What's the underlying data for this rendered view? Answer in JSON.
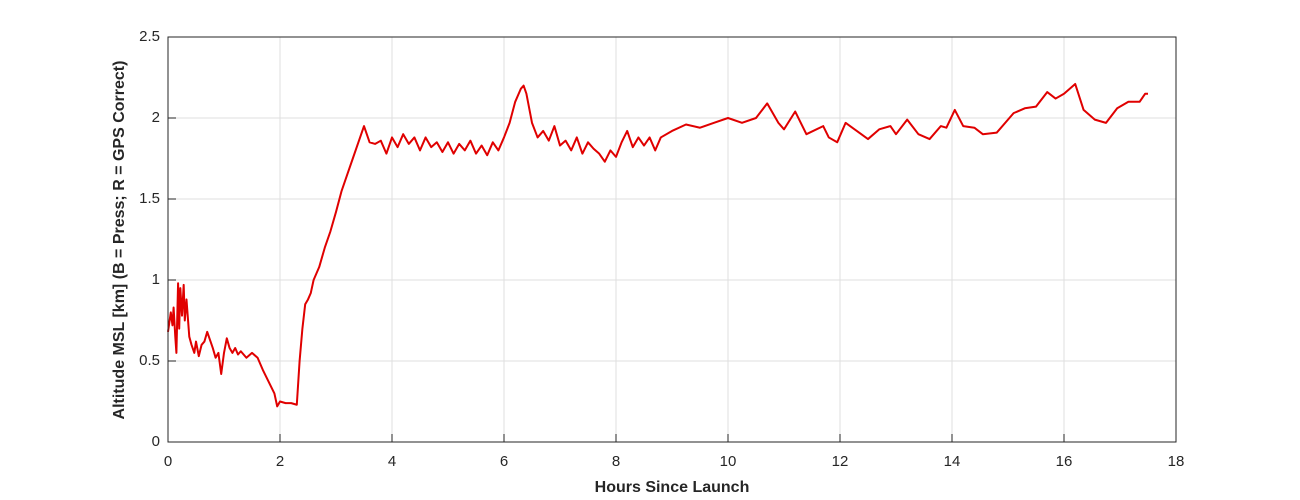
{
  "chart_data": {
    "type": "line",
    "xlabel": "Hours Since Launch",
    "ylabel": "Altitude MSL [km]   (B = Press; R = GPS Correct)",
    "xlim": [
      0,
      18
    ],
    "xticks": [
      0,
      2,
      4,
      6,
      8,
      10,
      12,
      14,
      16,
      18
    ],
    "ylim": [
      0,
      2.5
    ],
    "yticks": [
      0,
      0.5,
      1,
      1.5,
      2,
      2.5
    ],
    "grid": true,
    "series": [
      {
        "color": "#e00000",
        "x": [
          0.0,
          0.05,
          0.08,
          0.1,
          0.13,
          0.15,
          0.18,
          0.2,
          0.22,
          0.25,
          0.28,
          0.3,
          0.33,
          0.38,
          0.42,
          0.47,
          0.5,
          0.55,
          0.6,
          0.65,
          0.7,
          0.75,
          0.8,
          0.85,
          0.9,
          0.95,
          1.0,
          1.05,
          1.1,
          1.15,
          1.2,
          1.25,
          1.3,
          1.4,
          1.5,
          1.6,
          1.7,
          1.8,
          1.9,
          1.95,
          2.0,
          2.1,
          2.2,
          2.3,
          2.35,
          2.4,
          2.45,
          2.5,
          2.55,
          2.6,
          2.7,
          2.8,
          2.9,
          3.0,
          3.1,
          3.2,
          3.3,
          3.4,
          3.5,
          3.6,
          3.7,
          3.8,
          3.9,
          4.0,
          4.1,
          4.2,
          4.3,
          4.4,
          4.5,
          4.6,
          4.7,
          4.8,
          4.9,
          5.0,
          5.1,
          5.2,
          5.3,
          5.4,
          5.5,
          5.6,
          5.7,
          5.8,
          5.9,
          6.0,
          6.1,
          6.2,
          6.3,
          6.35,
          6.4,
          6.5,
          6.6,
          6.7,
          6.8,
          6.9,
          7.0,
          7.1,
          7.2,
          7.3,
          7.4,
          7.5,
          7.6,
          7.7,
          7.8,
          7.9,
          8.0,
          8.1,
          8.2,
          8.3,
          8.4,
          8.5,
          8.6,
          8.7,
          8.8,
          9.0,
          9.25,
          9.5,
          9.75,
          10.0,
          10.25,
          10.5,
          10.7,
          10.9,
          11.0,
          11.2,
          11.4,
          11.7,
          11.8,
          11.95,
          12.1,
          12.3,
          12.5,
          12.7,
          12.9,
          13.0,
          13.2,
          13.4,
          13.6,
          13.8,
          13.9,
          14.05,
          14.2,
          14.4,
          14.55,
          14.8,
          15.1,
          15.3,
          15.5,
          15.7,
          15.85,
          16.0,
          16.2,
          16.35,
          16.55,
          16.75,
          16.95,
          17.15,
          17.35,
          17.45,
          17.5
        ],
        "values": [
          0.68,
          0.8,
          0.72,
          0.83,
          0.65,
          0.55,
          0.98,
          0.7,
          0.95,
          0.78,
          0.97,
          0.75,
          0.88,
          0.65,
          0.6,
          0.55,
          0.62,
          0.53,
          0.6,
          0.62,
          0.68,
          0.63,
          0.58,
          0.52,
          0.55,
          0.42,
          0.55,
          0.64,
          0.58,
          0.55,
          0.58,
          0.54,
          0.56,
          0.52,
          0.55,
          0.52,
          0.44,
          0.37,
          0.3,
          0.22,
          0.25,
          0.24,
          0.24,
          0.23,
          0.5,
          0.7,
          0.85,
          0.88,
          0.92,
          1.0,
          1.08,
          1.2,
          1.3,
          1.42,
          1.55,
          1.65,
          1.75,
          1.85,
          1.95,
          1.85,
          1.84,
          1.86,
          1.78,
          1.88,
          1.82,
          1.9,
          1.84,
          1.88,
          1.8,
          1.88,
          1.82,
          1.85,
          1.79,
          1.85,
          1.78,
          1.84,
          1.8,
          1.86,
          1.78,
          1.83,
          1.77,
          1.85,
          1.8,
          1.88,
          1.97,
          2.1,
          2.18,
          2.2,
          2.15,
          1.97,
          1.88,
          1.92,
          1.86,
          1.95,
          1.83,
          1.86,
          1.8,
          1.88,
          1.78,
          1.85,
          1.81,
          1.78,
          1.73,
          1.8,
          1.76,
          1.85,
          1.92,
          1.82,
          1.88,
          1.83,
          1.88,
          1.8,
          1.88,
          1.92,
          1.96,
          1.94,
          1.97,
          2.0,
          1.97,
          2.0,
          2.09,
          1.97,
          1.93,
          2.04,
          1.9,
          1.95,
          1.88,
          1.85,
          1.97,
          1.92,
          1.87,
          1.93,
          1.95,
          1.9,
          1.99,
          1.9,
          1.87,
          1.95,
          1.94,
          2.05,
          1.95,
          1.94,
          1.9,
          1.91,
          2.03,
          2.06,
          2.07,
          2.16,
          2.12,
          2.15,
          2.21,
          2.05,
          1.99,
          1.97,
          2.06,
          2.1,
          2.1,
          2.15,
          2.15
        ]
      }
    ]
  }
}
